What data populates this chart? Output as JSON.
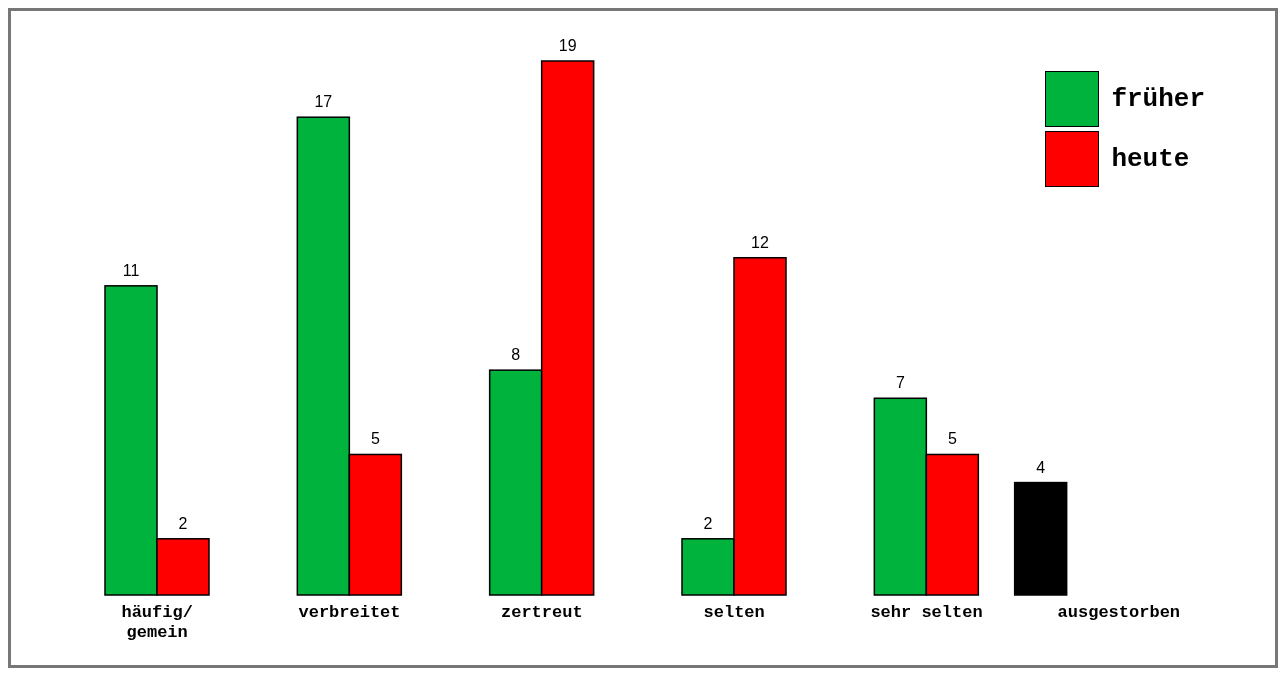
{
  "chart_data": {
    "type": "bar",
    "categories": [
      "häufig/gemein",
      "verbreitet",
      "zertreut",
      "selten",
      "sehr selten",
      "ausgestorben"
    ],
    "series": [
      {
        "name": "früher",
        "color": "#00b33c",
        "values": [
          11,
          17,
          8,
          2,
          7,
          null
        ]
      },
      {
        "name": "heute",
        "color": "#ff0000",
        "values": [
          2,
          5,
          19,
          12,
          5,
          null
        ]
      },
      {
        "color": "#000000",
        "values": [
          null,
          null,
          null,
          null,
          null,
          4
        ]
      }
    ],
    "data_labels": true,
    "legend": "top right",
    "grid": false
  }
}
